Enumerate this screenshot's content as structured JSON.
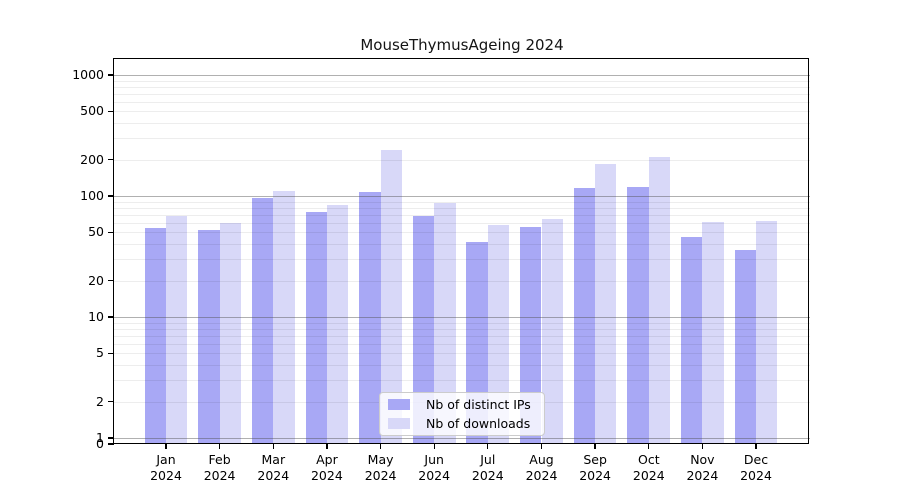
{
  "figure": {
    "title": "MouseThymusAgeing 2024",
    "background": "#ffffff"
  },
  "legend": {
    "items": [
      {
        "label": "Nb of distinct IPs",
        "color": "#a8a8f5"
      },
      {
        "label": "Nb of downloads",
        "color": "#d8d8f8"
      }
    ]
  },
  "chart_data": {
    "type": "bar",
    "title": "MouseThymusAgeing 2024",
    "categories": [
      "Jan 2024",
      "Feb 2024",
      "Mar 2024",
      "Apr 2024",
      "May 2024",
      "Jun 2024",
      "Jul 2024",
      "Aug 2024",
      "Sep 2024",
      "Oct 2024",
      "Nov 2024",
      "Dec 2024"
    ],
    "series": [
      {
        "name": "Nb of distinct IPs",
        "color": "#a8a8f5",
        "values": [
          54,
          52,
          97,
          74,
          107,
          68,
          42,
          55,
          116,
          118,
          46,
          36
        ]
      },
      {
        "name": "Nb of downloads",
        "color": "#d8d8f8",
        "values": [
          68,
          60,
          110,
          85,
          240,
          88,
          58,
          65,
          185,
          210,
          61,
          62
        ]
      }
    ],
    "xlabel": "",
    "ylabel": "",
    "yscale": "symlog",
    "yticks": [
      0,
      1,
      2,
      5,
      10,
      20,
      50,
      100,
      200,
      500,
      1000
    ],
    "ylim": [
      0,
      1300
    ],
    "grid": true,
    "grid_major_values": [
      1,
      10,
      100,
      1000
    ],
    "legend_position": "lower center"
  }
}
